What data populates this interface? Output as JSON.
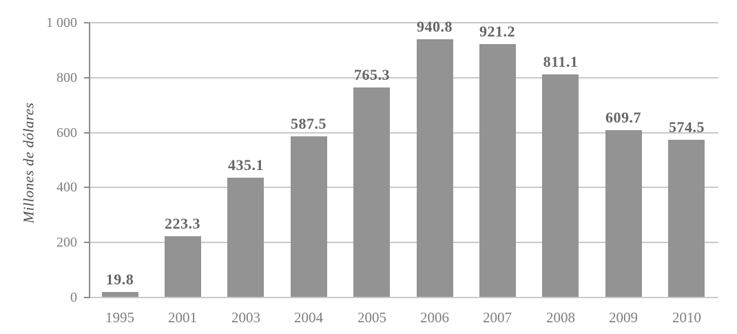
{
  "chart_data": {
    "type": "bar",
    "title": "",
    "ylabel": "Millones de dólares",
    "xlabel": "",
    "categories": [
      "1995",
      "2001",
      "2003",
      "2004",
      "2005",
      "2006",
      "2007",
      "2008",
      "2009",
      "2010"
    ],
    "values": [
      19.8,
      223.3,
      435.1,
      587.5,
      765.3,
      940.8,
      921.2,
      811.1,
      609.7,
      574.5
    ],
    "value_labels": [
      "19.8",
      "223.3",
      "435.1",
      "587.5",
      "765.3",
      "940.8",
      "921.2",
      "811.1",
      "609.7",
      "574.5"
    ],
    "ylim": [
      0,
      1000
    ],
    "ytick_values": [
      0,
      200,
      400,
      600,
      800,
      1000
    ],
    "ytick_labels": [
      "0",
      "200",
      "400",
      "600",
      "800",
      "1 000"
    ],
    "grid": true,
    "legend": false,
    "bar_color": "#939393",
    "gridline_color": "#c9c9c9",
    "axis_color": "#8c8c8c",
    "value_label_color": "#666666",
    "tick_label_color": "#7e7e7e"
  }
}
